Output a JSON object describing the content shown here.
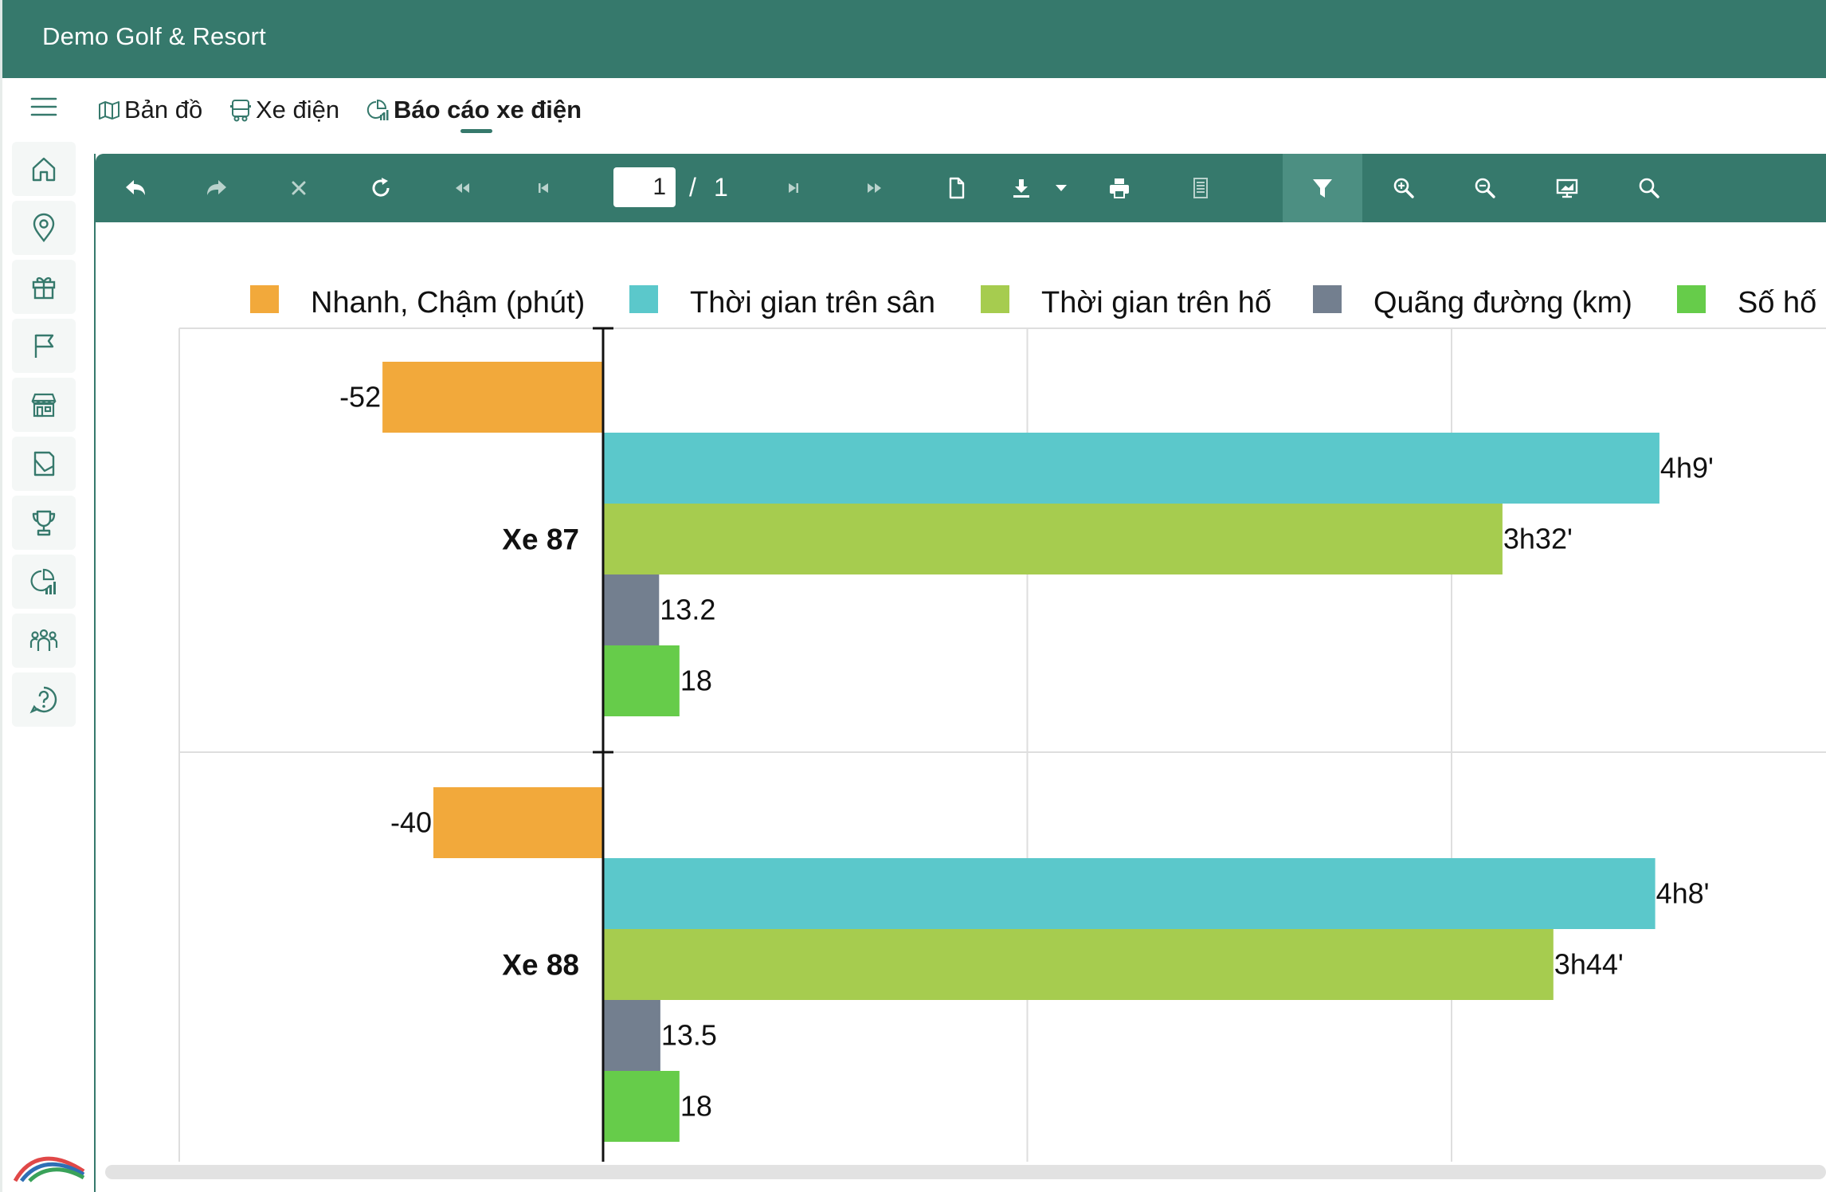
{
  "app": {
    "title": "Demo Golf & Resort"
  },
  "sidebar": {
    "items": [
      {
        "icon": "menu-icon"
      },
      {
        "icon": "home-icon"
      },
      {
        "icon": "location-pin-icon"
      },
      {
        "icon": "gift-icon"
      },
      {
        "icon": "flag-icon"
      },
      {
        "icon": "store-icon"
      },
      {
        "icon": "map-area-icon"
      },
      {
        "icon": "trophy-icon"
      },
      {
        "icon": "report-chart-icon"
      },
      {
        "icon": "users-group-icon"
      },
      {
        "icon": "help-icon"
      }
    ]
  },
  "tabs": [
    {
      "label": "Bản đồ",
      "icon": "map-icon",
      "active": false
    },
    {
      "label": "Xe điện",
      "icon": "cart-icon",
      "active": false
    },
    {
      "label": "Báo cáo xe điện",
      "icon": "report-icon",
      "active": true
    }
  ],
  "toolbar": {
    "page_current": "1",
    "page_separator": "/",
    "page_total": "1",
    "buttons": [
      "undo-icon",
      "redo-icon",
      "close-icon",
      "refresh-icon",
      "first-page-icon",
      "previous-page-icon",
      "next-page-icon",
      "last-page-icon",
      "document-icon",
      "download-icon",
      "dropdown-arrow-icon",
      "print-icon",
      "page-view-icon",
      "filter-icon",
      "zoom-in-icon",
      "zoom-out-icon",
      "present-icon",
      "search-icon"
    ]
  },
  "colors": {
    "brand": "#36796c",
    "series_fast_slow": "#f2a93b",
    "series_course_time": "#5bc8cb",
    "series_hole_time": "#a6cc4f",
    "series_distance": "#737f8f",
    "series_holes": "#66cc4a"
  },
  "chart_data": {
    "type": "bar",
    "orientation": "horizontal",
    "categories": [
      "Xe 87",
      "Xe 88"
    ],
    "series": [
      {
        "name": "Nhanh, Chậm (phút)",
        "values": [
          -52,
          -40
        ],
        "labels": [
          "-52",
          "-40"
        ]
      },
      {
        "name": "Thời gian trên sân",
        "values": [
          249,
          248
        ],
        "labels": [
          "4h9'",
          "4h8'"
        ]
      },
      {
        "name": "Thời gian trên hố",
        "values": [
          212,
          224
        ],
        "labels": [
          "3h32'",
          "3h44'"
        ]
      },
      {
        "name": "Quãng đường (km)",
        "values": [
          13.2,
          13.5
        ],
        "labels": [
          "13.2",
          "13.5"
        ]
      },
      {
        "name": "Số hố",
        "values": [
          18,
          18
        ],
        "labels": [
          "18",
          "18"
        ]
      }
    ],
    "legend_position": "top",
    "grid": true
  }
}
